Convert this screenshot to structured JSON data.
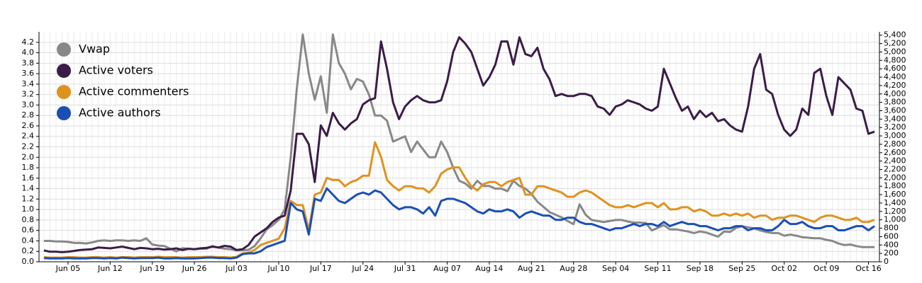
{
  "chart_data": {
    "type": "line",
    "categories": [
      null,
      null,
      null,
      null,
      "Jun 05",
      null,
      null,
      null,
      null,
      null,
      null,
      "Jun 12",
      null,
      null,
      null,
      null,
      null,
      null,
      "Jun 19",
      null,
      null,
      null,
      null,
      null,
      null,
      "Jun 26",
      null,
      null,
      null,
      null,
      null,
      null,
      "Jul 03",
      null,
      null,
      null,
      null,
      null,
      null,
      "Jul 10",
      null,
      null,
      null,
      null,
      null,
      null,
      "Jul 17",
      null,
      null,
      null,
      null,
      null,
      null,
      "Jul 24",
      null,
      null,
      null,
      null,
      null,
      null,
      "Jul 31",
      null,
      null,
      null,
      null,
      null,
      null,
      "Aug 07",
      null,
      null,
      null,
      null,
      null,
      null,
      "Aug 14",
      null,
      null,
      null,
      null,
      null,
      null,
      "Aug 21",
      null,
      null,
      null,
      null,
      null,
      null,
      "Aug 28",
      null,
      null,
      null,
      null,
      null,
      null,
      "Sep 04",
      null,
      null,
      null,
      null,
      null,
      null,
      "Sep 11",
      null,
      null,
      null,
      null,
      null,
      null,
      "Sep 18",
      null,
      null,
      null,
      null,
      null,
      null,
      "Sep 25",
      null,
      null,
      null,
      null,
      null,
      null,
      "Oct 02",
      null,
      null,
      null,
      null,
      null,
      null,
      "Oct 09",
      null,
      null,
      null,
      null,
      null,
      null,
      "Oct 16",
      null
    ],
    "series": [
      {
        "name": "Vwap",
        "color": "#888888",
        "axis": "y",
        "values": [
          0.4,
          0.4,
          0.39,
          0.39,
          0.38,
          0.36,
          0.36,
          0.35,
          0.37,
          0.4,
          0.41,
          0.4,
          0.41,
          0.41,
          0.4,
          0.41,
          0.4,
          0.45,
          0.33,
          0.31,
          0.3,
          0.25,
          0.2,
          0.26,
          0.25,
          0.24,
          0.25,
          0.25,
          0.3,
          0.27,
          0.25,
          0.24,
          0.22,
          0.22,
          0.23,
          0.3,
          0.45,
          0.62,
          0.7,
          0.8,
          1.0,
          2.0,
          3.3,
          4.35,
          3.6,
          3.1,
          3.55,
          2.85,
          4.35,
          3.8,
          3.6,
          3.3,
          3.5,
          3.45,
          3.2,
          2.8,
          2.8,
          2.7,
          2.3,
          2.35,
          2.4,
          2.1,
          2.3,
          2.15,
          2.0,
          2.0,
          2.3,
          2.1,
          1.8,
          1.55,
          1.5,
          1.4,
          1.55,
          1.45,
          1.45,
          1.4,
          1.4,
          1.35,
          1.55,
          1.45,
          1.4,
          1.3,
          1.15,
          1.05,
          0.95,
          0.9,
          0.85,
          0.78,
          0.72,
          1.1,
          0.9,
          0.8,
          0.78,
          0.76,
          0.78,
          0.8,
          0.8,
          0.77,
          0.75,
          0.75,
          0.74,
          0.6,
          0.65,
          0.7,
          0.62,
          0.62,
          0.6,
          0.58,
          0.55,
          0.58,
          0.56,
          0.52,
          0.48,
          0.58,
          0.57,
          0.65,
          0.68,
          0.66,
          0.64,
          0.6,
          0.57,
          0.55,
          0.55,
          0.5,
          0.52,
          0.5,
          0.47,
          0.46,
          0.45,
          0.45,
          0.42,
          0.4,
          0.35,
          0.32,
          0.33,
          0.3,
          0.28,
          0.28,
          0.28
        ]
      },
      {
        "name": "Active voters",
        "color": "#3a1c48",
        "axis": "y2",
        "values": [
          270,
          240,
          240,
          230,
          240,
          260,
          280,
          290,
          300,
          340,
          330,
          320,
          340,
          360,
          330,
          300,
          330,
          320,
          300,
          310,
          290,
          300,
          320,
          280,
          310,
          300,
          320,
          330,
          360,
          340,
          380,
          360,
          280,
          300,
          400,
          600,
          700,
          800,
          950,
          1050,
          1100,
          1700,
          3050,
          3050,
          2800,
          1900,
          3250,
          3000,
          3550,
          3300,
          3150,
          3300,
          3400,
          3750,
          3850,
          3900,
          5250,
          4600,
          3800,
          3400,
          3700,
          3850,
          3950,
          3850,
          3800,
          3800,
          3850,
          4300,
          5000,
          5350,
          5200,
          5000,
          4600,
          4200,
          4400,
          4700,
          5250,
          5250,
          4700,
          5350,
          4950,
          4900,
          5100,
          4600,
          4350,
          3950,
          4000,
          3950,
          3950,
          4000,
          4000,
          3950,
          3700,
          3650,
          3500,
          3700,
          3750,
          3850,
          3800,
          3750,
          3650,
          3600,
          3700,
          4600,
          4250,
          3900,
          3600,
          3700,
          3400,
          3600,
          3450,
          3550,
          3350,
          3400,
          3250,
          3150,
          3100,
          3700,
          4600,
          4950,
          4100,
          4000,
          3500,
          3150,
          3000,
          3150,
          3650,
          3500,
          4500,
          4600,
          3950,
          3500,
          4400,
          4250,
          4100,
          3650,
          3600,
          3050,
          3100
        ]
      },
      {
        "name": "Active commenters",
        "color": "#e0921e",
        "axis": "y2",
        "values": [
          110,
          100,
          100,
          100,
          110,
          110,
          100,
          100,
          110,
          110,
          100,
          110,
          100,
          110,
          110,
          100,
          110,
          110,
          110,
          120,
          110,
          110,
          110,
          100,
          110,
          110,
          110,
          120,
          120,
          110,
          110,
          100,
          120,
          200,
          220,
          280,
          400,
          450,
          500,
          550,
          800,
          1450,
          1350,
          1350,
          750,
          1600,
          1650,
          2000,
          1950,
          1950,
          1800,
          1900,
          1950,
          2050,
          2050,
          2850,
          2500,
          1950,
          1800,
          1700,
          1800,
          1800,
          1750,
          1750,
          1650,
          1800,
          2100,
          2200,
          2250,
          2250,
          2000,
          1800,
          1700,
          1850,
          1900,
          1900,
          1800,
          1900,
          1950,
          2000,
          1600,
          1600,
          1800,
          1800,
          1750,
          1700,
          1650,
          1550,
          1550,
          1650,
          1700,
          1650,
          1550,
          1450,
          1350,
          1300,
          1300,
          1350,
          1300,
          1350,
          1400,
          1400,
          1300,
          1400,
          1250,
          1250,
          1300,
          1300,
          1200,
          1250,
          1200,
          1100,
          1100,
          1150,
          1100,
          1150,
          1100,
          1150,
          1050,
          1100,
          1100,
          1000,
          1050,
          1050,
          1100,
          1100,
          1050,
          1000,
          950,
          1050,
          1100,
          1100,
          1050,
          1000,
          1000,
          1050,
          950,
          950,
          1000
        ]
      },
      {
        "name": "Active authors",
        "color": "#1a4fb5",
        "axis": "y2",
        "values": [
          90,
          80,
          80,
          80,
          90,
          80,
          80,
          80,
          90,
          90,
          80,
          90,
          80,
          100,
          90,
          80,
          90,
          90,
          90,
          100,
          80,
          80,
          90,
          80,
          80,
          80,
          90,
          100,
          100,
          90,
          90,
          80,
          100,
          180,
          200,
          200,
          250,
          350,
          400,
          450,
          500,
          1400,
          1250,
          1200,
          650,
          1500,
          1450,
          1750,
          1600,
          1450,
          1400,
          1500,
          1600,
          1650,
          1600,
          1700,
          1650,
          1500,
          1350,
          1250,
          1300,
          1300,
          1250,
          1150,
          1300,
          1100,
          1450,
          1500,
          1500,
          1450,
          1400,
          1300,
          1200,
          1150,
          1250,
          1200,
          1200,
          1250,
          1200,
          1050,
          1150,
          1200,
          1150,
          1100,
          1100,
          1000,
          1000,
          1050,
          1050,
          950,
          900,
          900,
          850,
          800,
          750,
          800,
          800,
          850,
          900,
          850,
          900,
          900,
          850,
          950,
          850,
          900,
          950,
          900,
          900,
          850,
          850,
          800,
          750,
          800,
          800,
          850,
          850,
          750,
          800,
          800,
          750,
          750,
          850,
          1000,
          900,
          900,
          950,
          850,
          800,
          800,
          850,
          850,
          750,
          750,
          800,
          850,
          850,
          750,
          850
        ]
      }
    ],
    "ylim": [
      0,
      4.4
    ],
    "yticks": [
      {
        "value": 0,
        "label": "0.0"
      },
      0.2,
      0.4,
      0.6,
      0.8,
      {
        "value": 1,
        "label": "1.0"
      },
      1.2,
      1.4,
      1.6,
      1.8,
      {
        "value": 2,
        "label": "2.0"
      },
      2.2,
      2.4,
      2.6,
      2.8,
      {
        "value": 3,
        "label": "3.0"
      },
      3.2,
      3.4,
      3.6,
      3.8,
      {
        "value": 4,
        "label": "4.0"
      },
      4.2
    ],
    "y2lim": [
      0,
      5480
    ],
    "y2ticks": [
      0,
      200,
      400,
      600,
      800,
      {
        "value": 1000,
        "label": "1,000"
      },
      {
        "value": 1200,
        "label": "1,200"
      },
      {
        "value": 1400,
        "label": "1,400"
      },
      {
        "value": 1600,
        "label": "1,600"
      },
      {
        "value": 1800,
        "label": "1,800"
      },
      {
        "value": 2000,
        "label": "2,000"
      },
      {
        "value": 2200,
        "label": "2,200"
      },
      {
        "value": 2400,
        "label": "2,400"
      },
      {
        "value": 2600,
        "label": "2,600"
      },
      {
        "value": 2800,
        "label": "2,800"
      },
      {
        "value": 3000,
        "label": "3,000"
      },
      {
        "value": 3200,
        "label": "3,200"
      },
      {
        "value": 3400,
        "label": "3,400"
      },
      {
        "value": 3600,
        "label": "3,600"
      },
      {
        "value": 3800,
        "label": "3,800"
      },
      {
        "value": 4000,
        "label": "4,000"
      },
      {
        "value": 4200,
        "label": "4,200"
      },
      {
        "value": 4400,
        "label": "4,400"
      },
      {
        "value": 4600,
        "label": "4,600"
      },
      {
        "value": 4800,
        "label": "4,800"
      },
      {
        "value": 5000,
        "label": "5,000"
      },
      {
        "value": 5200,
        "label": "5,200"
      },
      {
        "value": 5400,
        "label": "5,400"
      }
    ],
    "grid": true,
    "legend": "upper left"
  }
}
